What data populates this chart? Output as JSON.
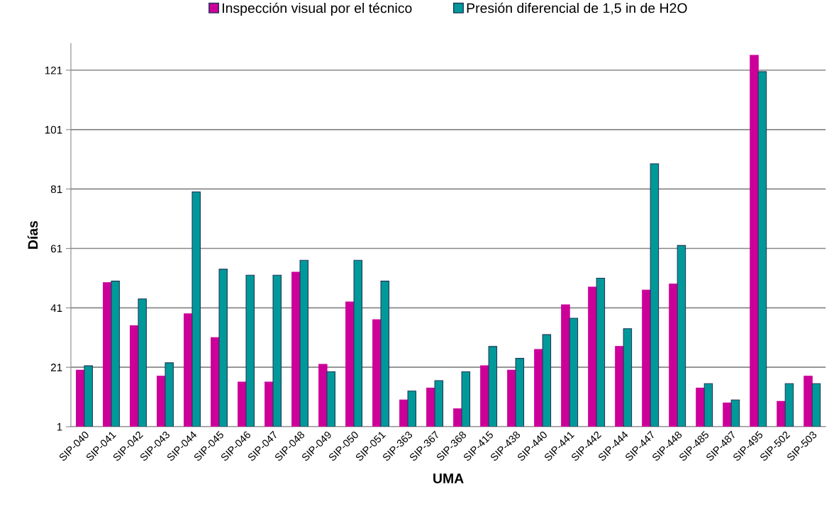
{
  "chart_data": {
    "type": "bar",
    "xlabel": "UMA",
    "ylabel": "Días",
    "categories": [
      "SIP-040",
      "SIP-041",
      "SIP-042",
      "SIP-043",
      "SIP-044",
      "SIP-045",
      "SIP-046",
      "SIP-047",
      "SIP-048",
      "SIP-049",
      "SIP-050",
      "SIP-051",
      "SIP-363",
      "SIP-367",
      "SIP-368",
      "SIP-415",
      "SIP-438",
      "SIP-440",
      "SIP-441",
      "SIP-442",
      "SIP-444",
      "SIP-447",
      "SIP-448",
      "SIP-485",
      "SIP-487",
      "SIP-495",
      "SIP-502",
      "SIP-503"
    ],
    "series": [
      {
        "name": "Inspección visual por el técnico",
        "color": "#cc0099",
        "values": [
          20,
          49.5,
          35,
          18,
          39,
          31,
          16,
          16,
          53,
          22,
          43,
          37,
          10,
          14,
          7,
          21.5,
          20,
          27,
          42,
          48,
          28,
          47,
          49,
          14,
          9,
          126,
          9.5,
          18
        ]
      },
      {
        "name": "Presión diferencial de 1,5 in de H2O",
        "color": "#009999",
        "values": [
          21.5,
          50,
          44,
          22.5,
          80,
          54,
          52,
          52,
          57,
          19.5,
          57,
          50,
          13,
          16.5,
          19.5,
          28,
          24,
          32,
          37.5,
          51,
          34,
          89.5,
          62,
          15.5,
          10,
          120.5,
          15.5,
          15.5
        ]
      }
    ],
    "ylim": [
      1,
      130
    ],
    "yticks": [
      1,
      21,
      41,
      61,
      81,
      101,
      121
    ],
    "grid": "y",
    "legend": "top"
  }
}
